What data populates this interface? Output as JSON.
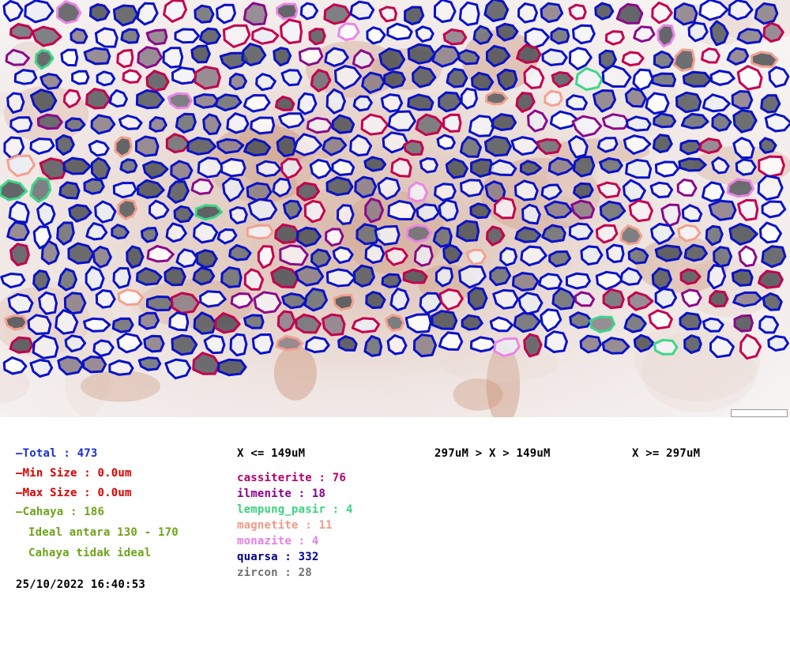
{
  "summary": {
    "total": "—Total : 473",
    "min_size": "—Min Size : 0.0um",
    "max_size": "—Max Size : 0.0um",
    "cahaya": "—Cahaya : 186",
    "ideal_range": "Ideal antara 130 - 170",
    "cahaya_status": "Cahaya tidak ideal",
    "timestamp": "25/10/2022 16:40:53"
  },
  "size_classes": [
    "X <= 149uM",
    "297uM > X > 149uM",
    "X >= 297uM"
  ],
  "minerals": [
    {
      "label": "cassiterite  : 76",
      "color": "#b2006e"
    },
    {
      "label": "ilmenite  : 18",
      "color": "#8b008b"
    },
    {
      "label": "lempung_pasir  : 4",
      "color": "#3cd27f"
    },
    {
      "label": "magnetite  : 11",
      "color": "#ef9a8a"
    },
    {
      "label": "monazite  : 4",
      "color": "#e57ee5"
    },
    {
      "label": "quarsa  : 332",
      "color": "#00008b"
    },
    {
      "label": "zircon  : 28",
      "color": "#707070"
    }
  ],
  "colors": {
    "total": "#1b2fd6",
    "min_max": "#d60000",
    "cahaya": "#6ea31a",
    "outline_quartz": "#0a12c8",
    "outline_cassiterite": "#c4004f",
    "outline_ilmenite": "#8b0a8b",
    "outline_magnetite": "#f2a190",
    "outline_monazite": "#ea86e6",
    "outline_lempung": "#3dd68a"
  }
}
